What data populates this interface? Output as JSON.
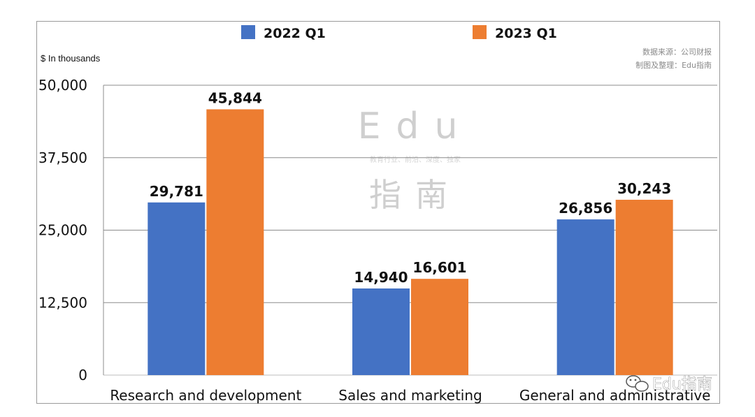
{
  "chart_data": {
    "type": "bar",
    "ylabel": "$ In thousands",
    "categories": [
      "Research and development",
      "Sales and marketing",
      "General and administrative"
    ],
    "series": [
      {
        "name": "2022 Q1",
        "color": "#4472c4",
        "values": [
          29781,
          14940,
          26856
        ],
        "labels": [
          "29,781",
          "14,940",
          "26,856"
        ]
      },
      {
        "name": "2023 Q1",
        "color": "#ed7d31",
        "values": [
          45844,
          16601,
          30243
        ],
        "labels": [
          "45,844",
          "16,601",
          "30,243"
        ]
      }
    ],
    "ylim": [
      0,
      50000
    ],
    "yticks": [
      {
        "value": 0,
        "label": "0"
      },
      {
        "value": 12500,
        "label": "12,500"
      },
      {
        "value": 25000,
        "label": "25,000"
      },
      {
        "value": 37500,
        "label": "37,500"
      },
      {
        "value": 50000,
        "label": "50,000"
      }
    ],
    "grid": true,
    "legend_position": "top"
  },
  "source_note": [
    "数据来源：公司财报",
    "制图及整理：Edu指南"
  ],
  "watermark": {
    "title": "Edu",
    "tagline": "教育行业、前沿、深度、独家",
    "subtitle": "指南"
  },
  "wechat_tag": "Edu指南",
  "icons": {
    "wechat": "wechat-icon"
  }
}
